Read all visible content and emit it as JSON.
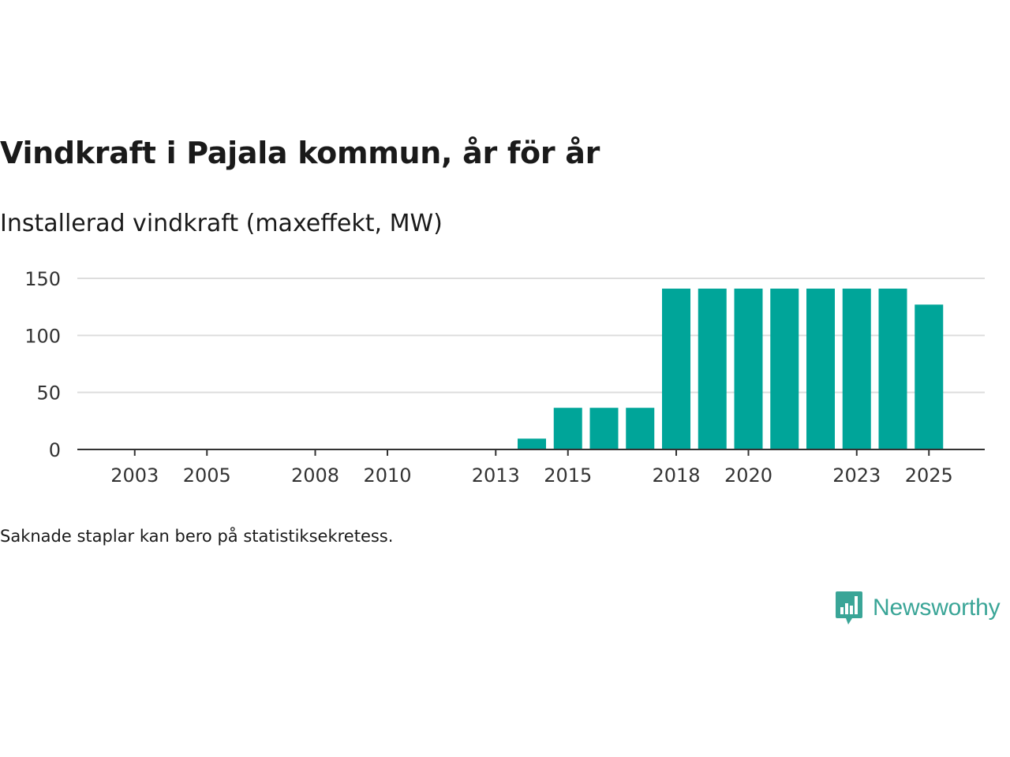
{
  "title": "Vindkraft i Pajala kommun, år för år",
  "subtitle": "Installerad vindkraft (maxeffekt, MW)",
  "footnote": "Saknade staplar kan bero på statistiksekretess.",
  "brand": {
    "name": "Newsworthy",
    "icon": "newsworthy-logo-icon",
    "color": "#3aa597"
  },
  "colors": {
    "bar": "#00a599",
    "grid": "#dddddd",
    "axis": "#333333",
    "text": "#333333"
  },
  "chart_data": {
    "type": "bar",
    "title": "Vindkraft i Pajala kommun, år för år",
    "ylabel": "Installerad vindkraft (maxeffekt, MW)",
    "xlabel": "",
    "categories": [
      2002,
      2003,
      2004,
      2005,
      2006,
      2007,
      2008,
      2009,
      2010,
      2011,
      2012,
      2013,
      2014,
      2015,
      2016,
      2017,
      2018,
      2019,
      2020,
      2021,
      2022,
      2023,
      2024,
      2025
    ],
    "values": [
      0,
      0,
      0,
      0,
      0,
      0,
      0,
      0,
      0,
      0,
      0,
      0,
      9.5,
      36.5,
      36.5,
      36.5,
      141,
      141,
      141,
      141,
      141,
      141,
      141,
      127
    ],
    "x_tick_labels": [
      "2003",
      "2005",
      "2008",
      "2010",
      "2013",
      "2015",
      "2018",
      "2020",
      "2023",
      "2025"
    ],
    "y_ticks": [
      0,
      50,
      100,
      150
    ],
    "ylim": [
      0,
      150
    ],
    "grid": true,
    "legend": "none"
  }
}
